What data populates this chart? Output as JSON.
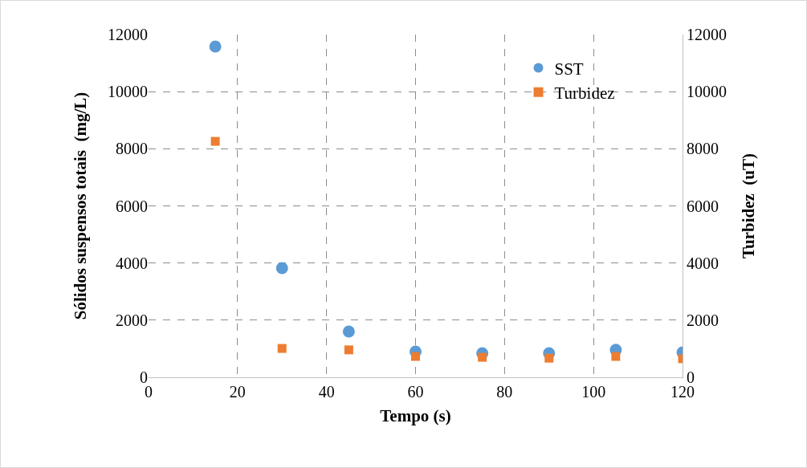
{
  "chart_data": {
    "type": "scatter",
    "xlabel": "Tempo (s)",
    "ylabel": "Sólidos suspensos totais  (mg/L)",
    "y2label": "Turbidez  (uT)",
    "x": [
      15,
      30,
      45,
      60,
      75,
      90,
      105,
      120
    ],
    "series": [
      {
        "name": "SST",
        "color": "#5b9bd5",
        "marker": "circle",
        "values": [
          11580,
          3820,
          1600,
          900,
          840,
          840,
          960,
          870
        ]
      },
      {
        "name": "Turbidez",
        "color": "#ed7d31",
        "marker": "square",
        "axis": "y2",
        "values": [
          8260,
          1010,
          960,
          730,
          700,
          670,
          730,
          650
        ]
      }
    ],
    "xlim": [
      0,
      120
    ],
    "xticks": [
      0,
      20,
      40,
      60,
      80,
      100,
      120
    ],
    "ylim": [
      0,
      12000
    ],
    "yticks": [
      0,
      2000,
      4000,
      6000,
      8000,
      10000,
      12000
    ],
    "y2lim": [
      0,
      12000
    ],
    "y2ticks": [
      0,
      2000,
      4000,
      6000,
      8000,
      10000,
      12000
    ],
    "grid": true,
    "legend": "top right"
  }
}
